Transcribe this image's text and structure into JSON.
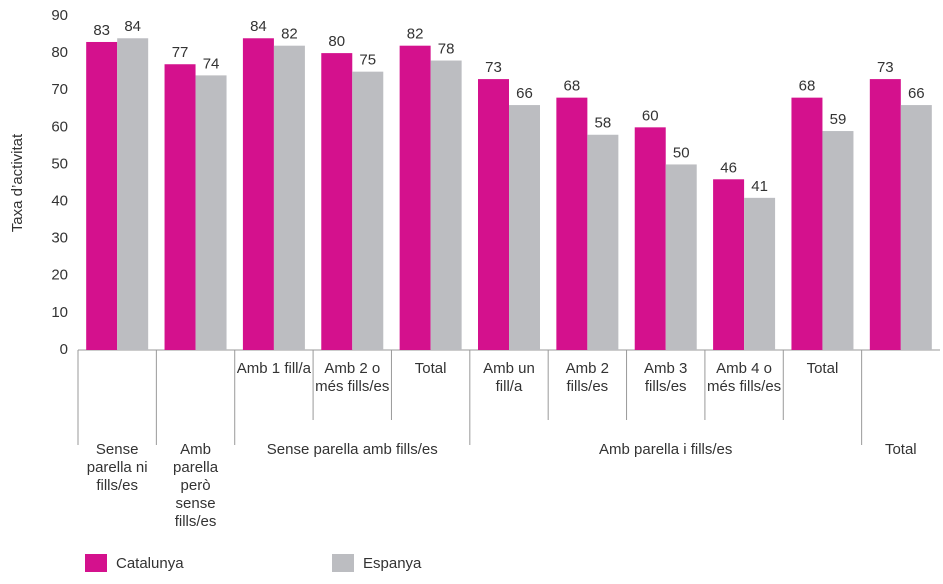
{
  "chart_data": {
    "type": "bar",
    "ylabel": "Taxa d’activitat",
    "categories": [
      null,
      null,
      "Amb 1 fill/a",
      "Amb 2 o més fills/es",
      "Total",
      "Amb un fill/a",
      "Amb 2 fills/es",
      "Amb 3 fills/es",
      "Amb 4 o més fills/es",
      "Total",
      null
    ],
    "groups": [
      {
        "label": "Sense parella ni fills/es",
        "span": 1
      },
      {
        "label": "Amb parella però sense fills/es",
        "span": 1
      },
      {
        "label": "Sense parella amb fills/es",
        "span": 3
      },
      {
        "label": "Amb parella i fills/es",
        "span": 5
      },
      {
        "label": "Total",
        "span": 1
      }
    ],
    "series": [
      {
        "name": "Catalunya",
        "color": "#d4118d",
        "values": [
          83,
          77,
          84,
          80,
          82,
          73,
          68,
          60,
          46,
          68,
          73
        ]
      },
      {
        "name": "Espanya",
        "color": "#bcbdc1",
        "values": [
          84,
          74,
          82,
          75,
          78,
          66,
          58,
          50,
          41,
          59,
          66
        ]
      }
    ],
    "ylim": [
      0,
      90
    ],
    "yticks": [
      0,
      10,
      20,
      30,
      40,
      50,
      60,
      70,
      80,
      90
    ],
    "grid": false
  }
}
